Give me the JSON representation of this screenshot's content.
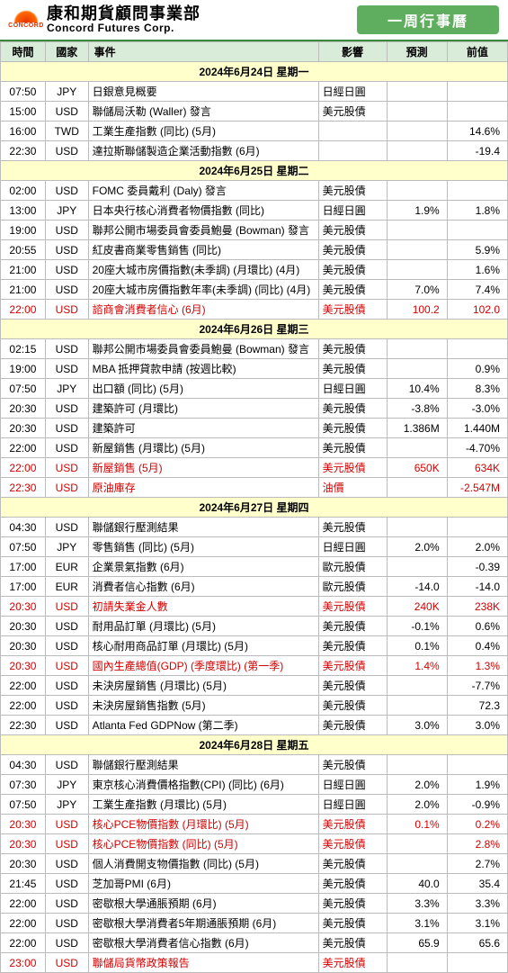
{
  "header": {
    "logo_word": "CONCORD",
    "company_cn": "康和期貨顧問事業部",
    "company_en": "Concord Futures Corp.",
    "title": "一周行事曆"
  },
  "columns": {
    "time": "時間",
    "country": "國家",
    "event": "事件",
    "impact": "影響",
    "forecast": "預測",
    "prev": "前值"
  },
  "sections": [
    {
      "label": "2024年6月24日  星期一",
      "rows": [
        {
          "time": "07:50",
          "country": "JPY",
          "event": "日銀意見概要",
          "impact": "日經日圓",
          "forecast": "",
          "prev": "",
          "hl": false
        },
        {
          "time": "15:00",
          "country": "USD",
          "event": "聯儲局沃勒 (Waller) 發言",
          "impact": "美元股債",
          "forecast": "",
          "prev": "",
          "hl": false
        },
        {
          "time": "16:00",
          "country": "TWD",
          "event": "工業生產指數 (同比) (5月)",
          "impact": "",
          "forecast": "",
          "prev": "14.6%",
          "hl": false
        },
        {
          "time": "22:30",
          "country": "USD",
          "event": "達拉斯聯儲製造企業活動指數 (6月)",
          "impact": "",
          "forecast": "",
          "prev": "-19.4",
          "hl": false
        }
      ]
    },
    {
      "label": "2024年6月25日  星期二",
      "rows": [
        {
          "time": "02:00",
          "country": "USD",
          "event": "FOMC 委員戴利 (Daly) 發言",
          "impact": "美元股債",
          "forecast": "",
          "prev": "",
          "hl": false
        },
        {
          "time": "13:00",
          "country": "JPY",
          "event": "日本央行核心消費者物價指數 (同比)",
          "impact": "日經日圓",
          "forecast": "1.9%",
          "prev": "1.8%",
          "hl": false
        },
        {
          "time": "19:00",
          "country": "USD",
          "event": "聯邦公開市場委員會委員鮑曼 (Bowman) 發言",
          "impact": "美元股債",
          "forecast": "",
          "prev": "",
          "hl": false
        },
        {
          "time": "20:55",
          "country": "USD",
          "event": "紅皮書商業零售銷售 (同比)",
          "impact": "美元股債",
          "forecast": "",
          "prev": "5.9%",
          "hl": false
        },
        {
          "time": "21:00",
          "country": "USD",
          "event": "20座大城市房價指數(未季調) (月環比) (4月)",
          "impact": "美元股債",
          "forecast": "",
          "prev": "1.6%",
          "hl": false
        },
        {
          "time": "21:00",
          "country": "USD",
          "event": "20座大城市房價指數年率(未季調) (同比) (4月)",
          "impact": "美元股債",
          "forecast": "7.0%",
          "prev": "7.4%",
          "hl": false
        },
        {
          "time": "22:00",
          "country": "USD",
          "event": "諮商會消費者信心 (6月)",
          "impact": "美元股債",
          "forecast": "100.2",
          "prev": "102.0",
          "hl": true
        }
      ]
    },
    {
      "label": "2024年6月26日  星期三",
      "rows": [
        {
          "time": "02:15",
          "country": "USD",
          "event": "聯邦公開市場委員會委員鮑曼 (Bowman) 發言",
          "impact": "美元股債",
          "forecast": "",
          "prev": "",
          "hl": false
        },
        {
          "time": "19:00",
          "country": "USD",
          "event": "MBA 抵押貸款申請 (按週比較)",
          "impact": "美元股債",
          "forecast": "",
          "prev": "0.9%",
          "hl": false
        },
        {
          "time": "07:50",
          "country": "JPY",
          "event": "出口額 (同比) (5月)",
          "impact": "日經日圓",
          "forecast": "10.4%",
          "prev": "8.3%",
          "hl": false
        },
        {
          "time": "20:30",
          "country": "USD",
          "event": "建築許可 (月環比)",
          "impact": "美元股債",
          "forecast": "-3.8%",
          "prev": "-3.0%",
          "hl": false
        },
        {
          "time": "20:30",
          "country": "USD",
          "event": "建築許可",
          "impact": "美元股債",
          "forecast": "1.386M",
          "prev": "1.440M",
          "hl": false
        },
        {
          "time": "22:00",
          "country": "USD",
          "event": "新屋銷售 (月環比) (5月)",
          "impact": "美元股債",
          "forecast": "",
          "prev": "-4.70%",
          "hl": false
        },
        {
          "time": "22:00",
          "country": "USD",
          "event": "新屋銷售 (5月)",
          "impact": "美元股債",
          "forecast": "650K",
          "prev": "634K",
          "hl": true
        },
        {
          "time": "22:30",
          "country": "USD",
          "event": "原油庫存",
          "impact": "油價",
          "forecast": "",
          "prev": "-2.547M",
          "hl": true
        }
      ]
    },
    {
      "label": "2024年6月27日  星期四",
      "rows": [
        {
          "time": "04:30",
          "country": "USD",
          "event": "聯儲銀行壓測結果",
          "impact": "美元股債",
          "forecast": "",
          "prev": "",
          "hl": false
        },
        {
          "time": "07:50",
          "country": "JPY",
          "event": "零售銷售 (同比) (5月)",
          "impact": "日經日圓",
          "forecast": "2.0%",
          "prev": "2.0%",
          "hl": false
        },
        {
          "time": "17:00",
          "country": "EUR",
          "event": "企業景氣指數 (6月)",
          "impact": "歐元股債",
          "forecast": "",
          "prev": "-0.39",
          "hl": false
        },
        {
          "time": "17:00",
          "country": "EUR",
          "event": "消費者信心指數 (6月)",
          "impact": "歐元股債",
          "forecast": "-14.0",
          "prev": "-14.0",
          "hl": false
        },
        {
          "time": "20:30",
          "country": "USD",
          "event": "初請失業金人數",
          "impact": "美元股債",
          "forecast": "240K",
          "prev": "238K",
          "hl": true
        },
        {
          "time": "20:30",
          "country": "USD",
          "event": "耐用品訂單 (月環比) (5月)",
          "impact": "美元股債",
          "forecast": "-0.1%",
          "prev": "0.6%",
          "hl": false
        },
        {
          "time": "20:30",
          "country": "USD",
          "event": "核心耐用商品訂單 (月環比) (5月)",
          "impact": "美元股債",
          "forecast": "0.1%",
          "prev": "0.4%",
          "hl": false
        },
        {
          "time": "20:30",
          "country": "USD",
          "event": "國內生產總值(GDP) (季度環比) (第一季)",
          "impact": "美元股債",
          "forecast": "1.4%",
          "prev": "1.3%",
          "hl": true
        },
        {
          "time": "22:00",
          "country": "USD",
          "event": "未決房屋銷售 (月環比) (5月)",
          "impact": "美元股債",
          "forecast": "",
          "prev": "-7.7%",
          "hl": false
        },
        {
          "time": "22:00",
          "country": "USD",
          "event": "未決房屋銷售指數 (5月)",
          "impact": "美元股債",
          "forecast": "",
          "prev": "72.3",
          "hl": false
        },
        {
          "time": "22:30",
          "country": "USD",
          "event": "Atlanta Fed GDPNow (第二季)",
          "impact": "美元股債",
          "forecast": "3.0%",
          "prev": "3.0%",
          "hl": false
        }
      ]
    },
    {
      "label": "2024年6月28日  星期五",
      "rows": [
        {
          "time": "04:30",
          "country": "USD",
          "event": "聯儲銀行壓測結果",
          "impact": "美元股債",
          "forecast": "",
          "prev": "",
          "hl": false
        },
        {
          "time": "07:30",
          "country": "JPY",
          "event": "東京核心消費價格指數(CPI) (同比) (6月)",
          "impact": "日經日圓",
          "forecast": "2.0%",
          "prev": "1.9%",
          "hl": false
        },
        {
          "time": "07:50",
          "country": "JPY",
          "event": "工業生產指數 (月環比) (5月)",
          "impact": "日經日圓",
          "forecast": "2.0%",
          "prev": "-0.9%",
          "hl": false
        },
        {
          "time": "20:30",
          "country": "USD",
          "event": "核心PCE物價指數 (月環比) (5月)",
          "impact": "美元股債",
          "forecast": "0.1%",
          "prev": "0.2%",
          "hl": true
        },
        {
          "time": "20:30",
          "country": "USD",
          "event": "核心PCE物價指數 (同比) (5月)",
          "impact": "美元股債",
          "forecast": "",
          "prev": "2.8%",
          "hl": true
        },
        {
          "time": "20:30",
          "country": "USD",
          "event": "個人消費開支物價指數 (同比) (5月)",
          "impact": "美元股債",
          "forecast": "",
          "prev": "2.7%",
          "hl": false
        },
        {
          "time": "21:45",
          "country": "USD",
          "event": "芝加哥PMI (6月)",
          "impact": "美元股債",
          "forecast": "40.0",
          "prev": "35.4",
          "hl": false
        },
        {
          "time": "22:00",
          "country": "USD",
          "event": "密歇根大學通脹預期 (6月)",
          "impact": "美元股債",
          "forecast": "3.3%",
          "prev": "3.3%",
          "hl": false
        },
        {
          "time": "22:00",
          "country": "USD",
          "event": "密歇根大學消費者5年期通脹預期 (6月)",
          "impact": "美元股債",
          "forecast": "3.1%",
          "prev": "3.1%",
          "hl": false
        },
        {
          "time": "22:00",
          "country": "USD",
          "event": "密歇根大學消費者信心指數 (6月)",
          "impact": "美元股債",
          "forecast": "65.9",
          "prev": "65.6",
          "hl": false
        },
        {
          "time": "23:00",
          "country": "USD",
          "event": "聯儲局貨幣政策報告",
          "impact": "美元股債",
          "forecast": "",
          "prev": "",
          "hl": true
        }
      ]
    }
  ]
}
